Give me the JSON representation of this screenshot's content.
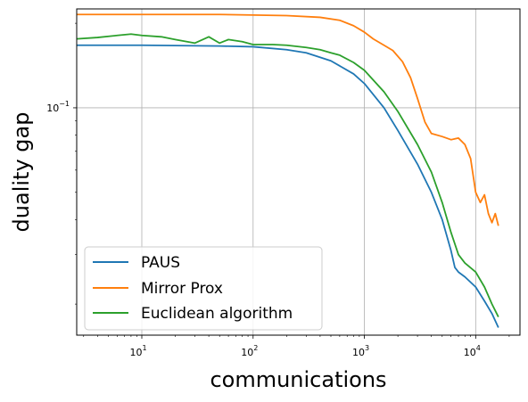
{
  "chart_data": {
    "type": "line",
    "xlabel": "communications",
    "ylabel": "duality gap",
    "xscale": "log",
    "yscale": "log",
    "xlim": [
      2.6,
      25000
    ],
    "ylim": [
      0.0155,
      0.225
    ],
    "x_ticks": [
      10,
      100,
      1000,
      10000
    ],
    "x_tick_labels": [
      {
        "base": "10",
        "exp": "1"
      },
      {
        "base": "10",
        "exp": "2"
      },
      {
        "base": "10",
        "exp": "3"
      },
      {
        "base": "10",
        "exp": "4"
      }
    ],
    "y_ticks": [
      0.1
    ],
    "y_tick_labels": [
      {
        "base": "10",
        "exp": "−1"
      }
    ],
    "grid": true,
    "legend_position": "lower-left",
    "series": [
      {
        "name": "PAUS",
        "color": "#1f77b4",
        "x": [
          2.6,
          10,
          50,
          100,
          200,
          300,
          500,
          800,
          1000,
          1500,
          2000,
          3000,
          4000,
          5000,
          6000,
          6500,
          7000,
          8000,
          10000,
          12000,
          14000,
          16000
        ],
        "y": [
          0.167,
          0.167,
          0.166,
          0.165,
          0.161,
          0.157,
          0.147,
          0.132,
          0.122,
          0.1,
          0.083,
          0.063,
          0.05,
          0.04,
          0.031,
          0.027,
          0.026,
          0.025,
          0.023,
          0.0205,
          0.0185,
          0.0165
        ]
      },
      {
        "name": "Mirror Prox",
        "color": "#ff7f0e",
        "x": [
          2.6,
          10,
          50,
          100,
          200,
          400,
          600,
          800,
          1000,
          1200,
          1500,
          1800,
          2200,
          2600,
          3000,
          3500,
          4000,
          5000,
          6000,
          7000,
          8000,
          9000,
          10000,
          11000,
          12000,
          13000,
          14000,
          15000,
          16000
        ],
        "y": [
          0.215,
          0.215,
          0.215,
          0.214,
          0.213,
          0.21,
          0.205,
          0.196,
          0.186,
          0.176,
          0.167,
          0.16,
          0.146,
          0.128,
          0.108,
          0.089,
          0.081,
          0.079,
          0.077,
          0.078,
          0.074,
          0.066,
          0.05,
          0.046,
          0.049,
          0.042,
          0.039,
          0.042,
          0.038
        ]
      },
      {
        "name": "Euclidean algorithm",
        "color": "#2ca02c",
        "x": [
          2.6,
          4,
          6,
          8,
          10,
          15,
          20,
          30,
          40,
          50,
          60,
          80,
          100,
          150,
          200,
          300,
          400,
          500,
          600,
          800,
          1000,
          1500,
          2000,
          3000,
          4000,
          5000,
          6000,
          7000,
          8000,
          10000,
          12000,
          14000,
          16000
        ],
        "y": [
          0.176,
          0.178,
          0.181,
          0.183,
          0.181,
          0.179,
          0.175,
          0.17,
          0.179,
          0.17,
          0.175,
          0.172,
          0.168,
          0.168,
          0.167,
          0.164,
          0.161,
          0.157,
          0.154,
          0.145,
          0.136,
          0.114,
          0.097,
          0.074,
          0.059,
          0.046,
          0.036,
          0.03,
          0.028,
          0.026,
          0.023,
          0.02,
          0.018
        ]
      }
    ]
  }
}
